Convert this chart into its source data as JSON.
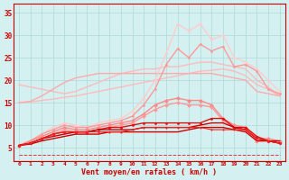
{
  "title": "",
  "xlabel": "Vent moyen/en rafales ( km/h )",
  "background_color": "#d4f0f0",
  "grid_color": "#b0d8d8",
  "x_values": [
    0,
    1,
    2,
    3,
    4,
    5,
    6,
    7,
    8,
    9,
    10,
    11,
    12,
    13,
    14,
    15,
    16,
    17,
    18,
    19,
    20,
    21,
    22,
    23
  ],
  "ylim": [
    2,
    37
  ],
  "yticks": [
    5,
    10,
    15,
    20,
    25,
    30,
    35
  ],
  "series": [
    {
      "name": "smooth_light_lower",
      "color": "#ffbbbb",
      "lw": 1.0,
      "marker": null,
      "linestyle": "-",
      "y": [
        15.0,
        15.2,
        15.5,
        15.8,
        16.2,
        16.5,
        17.0,
        17.5,
        18.0,
        18.5,
        19.0,
        19.5,
        20.0,
        20.5,
        21.0,
        21.5,
        22.0,
        22.2,
        22.5,
        22.0,
        21.0,
        19.0,
        18.0,
        16.5
      ]
    },
    {
      "name": "smooth_light_upper",
      "color": "#ffbbbb",
      "lw": 1.0,
      "marker": null,
      "linestyle": "-",
      "y": [
        19.0,
        18.5,
        18.0,
        17.5,
        17.0,
        17.5,
        18.5,
        19.5,
        20.5,
        21.5,
        22.0,
        22.5,
        22.5,
        23.0,
        23.0,
        23.5,
        24.0,
        24.0,
        23.5,
        23.0,
        22.5,
        20.0,
        18.5,
        16.5
      ]
    },
    {
      "name": "smooth_pink_middle_low",
      "color": "#ffaaaa",
      "lw": 1.0,
      "marker": null,
      "linestyle": "-",
      "y": [
        15.0,
        15.3,
        16.5,
        18.0,
        19.5,
        20.5,
        21.0,
        21.5,
        21.5,
        21.5,
        21.5,
        21.5,
        21.5,
        21.5,
        21.5,
        21.5,
        21.5,
        21.5,
        21.0,
        20.5,
        20.0,
        17.5,
        17.0,
        16.5
      ]
    },
    {
      "name": "jagged_light_top",
      "color": "#ffcccc",
      "lw": 1.0,
      "marker": "o",
      "markersize": 2.0,
      "linestyle": "-",
      "y": [
        5.5,
        6.5,
        8.0,
        9.5,
        10.5,
        10.0,
        9.5,
        10.5,
        11.0,
        11.5,
        13.0,
        16.0,
        20.0,
        26.0,
        32.5,
        31.0,
        32.5,
        29.0,
        30.0,
        25.0,
        24.0,
        22.5,
        20.0,
        17.5
      ]
    },
    {
      "name": "jagged_pink_top2",
      "color": "#ff9999",
      "lw": 1.0,
      "marker": "o",
      "markersize": 2.0,
      "linestyle": "-",
      "y": [
        5.5,
        6.5,
        8.0,
        9.0,
        10.0,
        9.5,
        9.5,
        10.0,
        10.5,
        11.0,
        12.0,
        14.5,
        18.0,
        23.5,
        27.0,
        25.0,
        28.0,
        26.5,
        27.5,
        23.0,
        23.5,
        22.0,
        18.0,
        17.0
      ]
    },
    {
      "name": "jagged_pink_mid",
      "color": "#ff8888",
      "lw": 1.0,
      "marker": "D",
      "markersize": 2.5,
      "linestyle": "-",
      "y": [
        5.5,
        6.5,
        7.5,
        8.5,
        9.5,
        9.0,
        9.0,
        9.5,
        10.0,
        10.5,
        11.0,
        12.5,
        14.5,
        15.5,
        16.0,
        15.5,
        15.5,
        14.5,
        11.5,
        10.0,
        9.5,
        7.0,
        7.0,
        6.5
      ]
    },
    {
      "name": "jagged_pink_mid2",
      "color": "#ff9999",
      "lw": 1.0,
      "marker": "D",
      "markersize": 2.5,
      "linestyle": "-",
      "y": [
        5.5,
        6.0,
        7.0,
        8.0,
        9.0,
        8.5,
        8.5,
        9.0,
        9.5,
        10.0,
        10.5,
        12.0,
        13.5,
        14.5,
        15.0,
        14.5,
        14.5,
        14.0,
        11.0,
        9.5,
        9.0,
        6.5,
        6.5,
        6.0
      ]
    },
    {
      "name": "red_line_upper",
      "color": "#dd1111",
      "lw": 1.0,
      "marker": "o",
      "markersize": 2.0,
      "linestyle": "-",
      "y": [
        5.5,
        6.0,
        7.0,
        8.0,
        8.5,
        8.5,
        8.5,
        9.0,
        9.5,
        9.5,
        10.0,
        10.5,
        10.5,
        10.5,
        10.5,
        10.5,
        10.5,
        11.5,
        11.5,
        9.5,
        9.5,
        7.5,
        6.5,
        6.0
      ]
    },
    {
      "name": "red_line_mid",
      "color": "#cc0000",
      "lw": 1.0,
      "marker": null,
      "linestyle": "-",
      "y": [
        5.5,
        6.0,
        7.0,
        7.5,
        8.0,
        8.5,
        8.5,
        9.0,
        9.0,
        9.0,
        9.0,
        9.5,
        9.5,
        9.5,
        9.5,
        9.5,
        10.0,
        10.5,
        10.5,
        9.5,
        9.0,
        7.0,
        6.5,
        6.5
      ]
    },
    {
      "name": "red_line_lower",
      "color": "#cc0000",
      "lw": 1.0,
      "marker": null,
      "linestyle": "-",
      "y": [
        5.5,
        5.8,
        6.5,
        7.0,
        7.5,
        8.0,
        8.0,
        8.0,
        8.5,
        8.5,
        8.5,
        8.5,
        8.5,
        8.5,
        8.5,
        9.0,
        9.5,
        9.5,
        9.5,
        9.0,
        8.5,
        6.5,
        6.5,
        6.0
      ]
    },
    {
      "name": "red_dot_lower2",
      "color": "#ee2222",
      "lw": 0.8,
      "marker": "o",
      "markersize": 1.5,
      "linestyle": "-",
      "y": [
        5.5,
        6.0,
        7.0,
        8.0,
        8.5,
        8.5,
        8.5,
        8.5,
        8.5,
        8.5,
        9.0,
        9.5,
        9.5,
        9.5,
        9.5,
        9.5,
        9.5,
        9.0,
        9.0,
        9.0,
        9.0,
        7.0,
        6.5,
        6.0
      ]
    },
    {
      "name": "dashed_bottom",
      "color": "#ee3333",
      "lw": 0.7,
      "marker": null,
      "linestyle": "--",
      "y": [
        3.5,
        3.5,
        3.5,
        3.5,
        3.5,
        3.5,
        3.5,
        3.5,
        3.5,
        3.5,
        3.5,
        3.5,
        3.5,
        3.5,
        3.5,
        3.5,
        3.5,
        3.5,
        3.5,
        3.5,
        3.5,
        3.5,
        3.5,
        3.5
      ]
    }
  ]
}
